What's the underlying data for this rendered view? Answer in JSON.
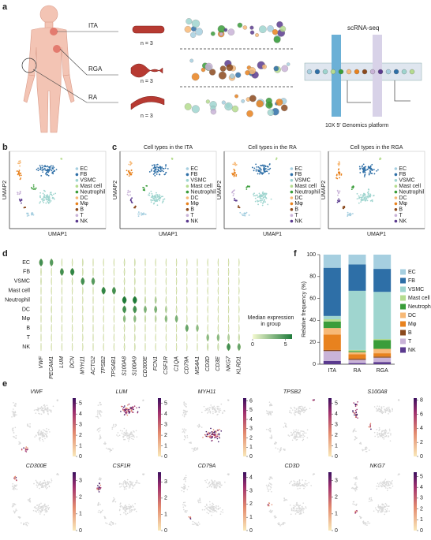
{
  "panels": {
    "a": "a",
    "b": "b",
    "c": "c",
    "d": "d",
    "e": "e",
    "f": "f"
  },
  "schematic": {
    "sites": [
      "ITA",
      "RGA",
      "RA"
    ],
    "n_labels": [
      "n = 3",
      "n = 3",
      "n = 3"
    ],
    "method": "scRNA-seq",
    "platform": "10X 5′ Genomics platform"
  },
  "cell_types": [
    "EC",
    "FB",
    "VSMC",
    "Mast cell",
    "Neutrophil",
    "DC",
    "Mφ",
    "B",
    "T",
    "NK"
  ],
  "cell_colors": [
    "#a6cfe0",
    "#2e6fa7",
    "#9fd5cf",
    "#b5dc8f",
    "#3a9d3a",
    "#f7b977",
    "#e8821e",
    "#8b4a1e",
    "#c9b3d8",
    "#5b3b8f"
  ],
  "umap": {
    "x_label": "UMAP1",
    "y_label": "UMAP2",
    "titles": [
      "Cell types in the ITA",
      "Cell types in the RA",
      "Cell types in the RGA"
    ]
  },
  "violin": {
    "genes": [
      "VWF",
      "PECAM1",
      "LUM",
      "DCN",
      "MYH11",
      "ACTG2",
      "TPSB2",
      "TPSAB1",
      "S100A8",
      "S100A9",
      "CD300E",
      "FCN1",
      "CSF1R",
      "C1QA",
      "CD79A",
      "MS4A1",
      "CD3D",
      "CD3E",
      "NKG7",
      "KLRD1"
    ],
    "values": [
      [
        5,
        0.5,
        0.5,
        0,
        0,
        0,
        0,
        0,
        0,
        0
      ],
      [
        4.5,
        0,
        0,
        0,
        0,
        0.3,
        0.3,
        0,
        0,
        0
      ],
      [
        0.3,
        5,
        0.5,
        0,
        0,
        0,
        0,
        0,
        0,
        0
      ],
      [
        0.3,
        5.5,
        0.5,
        0,
        0,
        0,
        0,
        0,
        0,
        0
      ],
      [
        0.5,
        0.5,
        5,
        0.3,
        0,
        0,
        0,
        0,
        0,
        0
      ],
      [
        0,
        0.3,
        4.5,
        0,
        0,
        0,
        0,
        0,
        0,
        0
      ],
      [
        0,
        0,
        0,
        5.5,
        0,
        0,
        0,
        0,
        0,
        0
      ],
      [
        0,
        0,
        0,
        5,
        0,
        0,
        0,
        0,
        0,
        0
      ],
      [
        0.5,
        0.5,
        0.5,
        0.5,
        6,
        5,
        3,
        0.5,
        0.5,
        0.5
      ],
      [
        0.5,
        0.5,
        0.5,
        0.5,
        6,
        5,
        3,
        0.5,
        0.5,
        0.5
      ],
      [
        0,
        0,
        0,
        0,
        1,
        3.5,
        1,
        0,
        0,
        0
      ],
      [
        0,
        0,
        0,
        0,
        2,
        3.5,
        1.5,
        0,
        0,
        0
      ],
      [
        0,
        0,
        0,
        0,
        0.5,
        2,
        3,
        0,
        0,
        0
      ],
      [
        0,
        0,
        0,
        0,
        0,
        0.5,
        3.5,
        0,
        0,
        0
      ],
      [
        0,
        0,
        0,
        0,
        0,
        0,
        0,
        4,
        0,
        0
      ],
      [
        0,
        0,
        0,
        0,
        0,
        0,
        0,
        3,
        0,
        0
      ],
      [
        0,
        0,
        0,
        0,
        0,
        0,
        0,
        0,
        3,
        1
      ],
      [
        0,
        0,
        0,
        0,
        0,
        0,
        0,
        0,
        3,
        1
      ],
      [
        0,
        0,
        0,
        0,
        0,
        0,
        0,
        0,
        2,
        5
      ],
      [
        0,
        0,
        0,
        0,
        0,
        0,
        0,
        0,
        1,
        4
      ]
    ],
    "colorbar_title": "Median expression in group",
    "clim": [
      0,
      6
    ],
    "cticks": [
      0,
      5
    ]
  },
  "chart_data": {
    "type": "bar",
    "stacked": true,
    "categories": [
      "ITA",
      "RA",
      "RGA"
    ],
    "y_label": "Relative frequency (%)",
    "ylim": [
      0,
      100
    ],
    "yticks": [
      0,
      20,
      40,
      60,
      80,
      100
    ],
    "series": [
      {
        "name": "EC",
        "color": "#a6cfe0",
        "values": [
          12,
          9,
          13
        ]
      },
      {
        "name": "FB",
        "color": "#2e6fa7",
        "values": [
          44,
          24,
          21
        ]
      },
      {
        "name": "VSMC",
        "color": "#9fd5cf",
        "values": [
          3,
          54,
          43
        ]
      },
      {
        "name": "Mast cell",
        "color": "#b5dc8f",
        "values": [
          2,
          1,
          1
        ]
      },
      {
        "name": "Neutrophil",
        "color": "#3a9d3a",
        "values": [
          6,
          1,
          8
        ]
      },
      {
        "name": "DC",
        "color": "#f7b977",
        "values": [
          6,
          2,
          4
        ]
      },
      {
        "name": "Mφ",
        "color": "#e8821e",
        "values": [
          14,
          4,
          3
        ]
      },
      {
        "name": "B",
        "color": "#8b4a1e",
        "values": [
          1,
          1,
          1
        ]
      },
      {
        "name": "T",
        "color": "#c9b3d8",
        "values": [
          9,
          3,
          4
        ]
      },
      {
        "name": "NK",
        "color": "#5b3b8f",
        "values": [
          3,
          1,
          2
        ]
      }
    ]
  },
  "features": [
    {
      "gene": "VWF",
      "clim": [
        0,
        5.5
      ],
      "cticks": [
        0,
        1,
        2,
        3,
        4,
        5
      ]
    },
    {
      "gene": "LUM",
      "clim": [
        0,
        5.5
      ],
      "cticks": [
        0,
        1,
        2,
        3,
        4,
        5
      ]
    },
    {
      "gene": "MYH11",
      "clim": [
        0,
        6.3
      ],
      "cticks": [
        0,
        1,
        2,
        3,
        4,
        5,
        6
      ]
    },
    {
      "gene": "TPSB2",
      "clim": [
        0,
        5.5
      ],
      "cticks": [
        0,
        1,
        2,
        3,
        4,
        5
      ]
    },
    {
      "gene": "S100A8",
      "clim": [
        0,
        8.3
      ],
      "cticks": [
        0,
        2,
        4,
        6,
        8
      ]
    },
    {
      "gene": "CD300E",
      "clim": [
        0,
        3.5
      ],
      "cticks": [
        0,
        1,
        2,
        3
      ]
    },
    {
      "gene": "CSF1R",
      "clim": [
        0,
        3.6
      ],
      "cticks": [
        0,
        1,
        2,
        3
      ]
    },
    {
      "gene": "CD79A",
      "clim": [
        0,
        4.4
      ],
      "cticks": [
        0,
        1,
        2,
        3,
        4
      ]
    },
    {
      "gene": "CD3D",
      "clim": [
        0,
        3.5
      ],
      "cticks": [
        0,
        1,
        2,
        3
      ]
    },
    {
      "gene": "NKG7",
      "clim": [
        0,
        5.4
      ],
      "cticks": [
        0,
        1,
        2,
        3,
        4,
        5
      ]
    }
  ]
}
